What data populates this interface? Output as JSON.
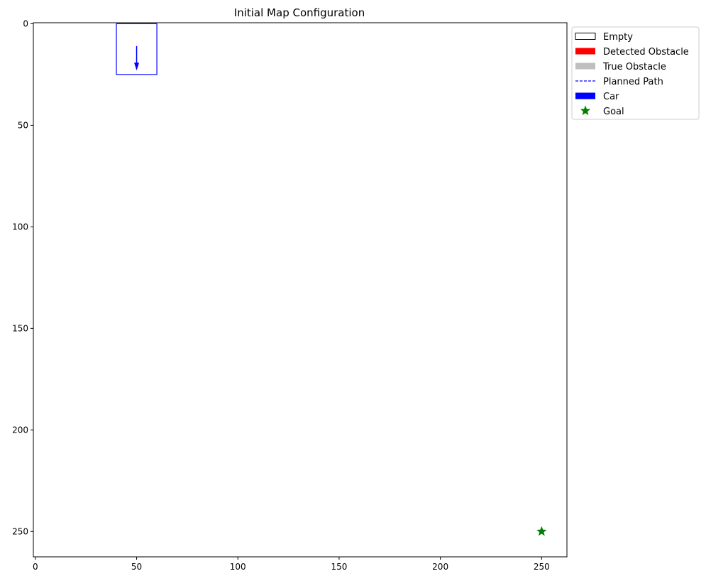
{
  "chart_data": {
    "type": "scatter",
    "title": "Initial Map Configuration",
    "xlabel": "",
    "ylabel": "",
    "xlim": [
      -1,
      262.5
    ],
    "ylim": [
      262.5,
      -0.5
    ],
    "y_inverted": true,
    "grid": false,
    "x_ticks": [
      0,
      50,
      100,
      150,
      200,
      250
    ],
    "y_ticks": [
      0,
      50,
      100,
      150,
      200,
      250
    ],
    "car": {
      "x_min": 40,
      "x_max": 60,
      "y_min": 0,
      "y_max": 25,
      "heading_arrow": {
        "x": 50,
        "y_start": 11,
        "y_end": 23
      },
      "color": "#0000ff"
    },
    "goal": {
      "x": 250,
      "y": 250,
      "marker": "star",
      "color": "#008000"
    },
    "legend": {
      "placement": "outside-top-right",
      "items": [
        {
          "label": "Empty",
          "kind": "patch-outline",
          "color": "#000000"
        },
        {
          "label": "Detected Obstacle",
          "kind": "patch",
          "color": "#ff0000"
        },
        {
          "label": "True Obstacle",
          "kind": "patch",
          "color": "#bfbfbf"
        },
        {
          "label": "Planned Path",
          "kind": "dashed-line",
          "color": "#0000ff"
        },
        {
          "label": "Car",
          "kind": "patch",
          "color": "#0000ff"
        },
        {
          "label": "Goal",
          "kind": "star",
          "color": "#008000"
        }
      ]
    }
  }
}
